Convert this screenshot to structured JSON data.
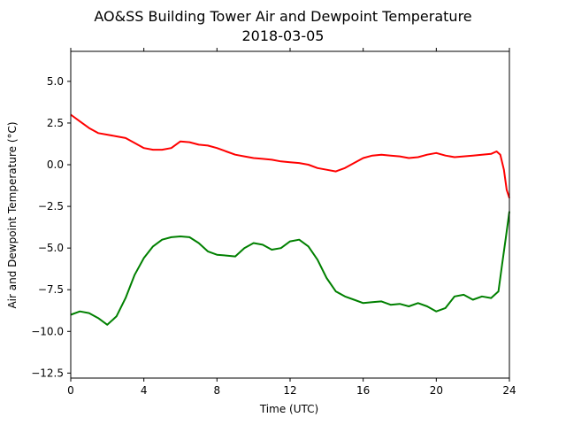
{
  "chart_data": {
    "type": "line",
    "title": "AO&SS Building Tower Air and Dewpoint Temperature",
    "subtitle": "2018-03-05",
    "xlabel": "Time (UTC)",
    "ylabel": "Air and Dewpoint Temperature (°C)",
    "xlim": [
      0,
      24
    ],
    "ylim": [
      -12.8,
      6.8
    ],
    "xticks": [
      0,
      4,
      8,
      12,
      16,
      20,
      24
    ],
    "xtick_labels": [
      "0",
      "4",
      "8",
      "12",
      "16",
      "20",
      "24"
    ],
    "yticks": [
      5.0,
      2.5,
      0.0,
      -2.5,
      -5.0,
      -7.5,
      -10.0,
      -12.5
    ],
    "ytick_labels": [
      "5.0",
      "2.5",
      "0.0",
      "−2.5",
      "−5.0",
      "−7.5",
      "−10.0",
      "−12.5"
    ],
    "grid": false,
    "series": [
      {
        "color": "#ff0000",
        "x": [
          0,
          0.5,
          1,
          1.5,
          2,
          2.5,
          3,
          3.5,
          4,
          4.5,
          5,
          5.5,
          6,
          6.5,
          7,
          7.5,
          8,
          8.5,
          9,
          9.5,
          10,
          10.5,
          11,
          11.5,
          12,
          12.5,
          13,
          13.5,
          14,
          14.5,
          15,
          15.5,
          16,
          16.5,
          17,
          17.5,
          18,
          18.5,
          19,
          19.5,
          20,
          20.5,
          21,
          21.5,
          22,
          22.5,
          23,
          23.3,
          23.5,
          23.7,
          23.85,
          24
        ],
        "y": [
          3.0,
          2.6,
          2.2,
          1.9,
          1.8,
          1.7,
          1.6,
          1.3,
          1.0,
          0.9,
          0.9,
          1.0,
          1.4,
          1.35,
          1.2,
          1.15,
          1.0,
          0.8,
          0.6,
          0.5,
          0.4,
          0.35,
          0.3,
          0.2,
          0.15,
          0.1,
          0.0,
          -0.2,
          -0.3,
          -0.4,
          -0.2,
          0.1,
          0.4,
          0.55,
          0.6,
          0.55,
          0.5,
          0.4,
          0.45,
          0.6,
          0.7,
          0.55,
          0.45,
          0.5,
          0.55,
          0.6,
          0.65,
          0.8,
          0.6,
          -0.3,
          -1.5,
          -2.0
        ]
      },
      {
        "color": "#008000",
        "x": [
          0,
          0.5,
          1,
          1.5,
          2,
          2.5,
          3,
          3.5,
          4,
          4.5,
          5,
          5.5,
          6,
          6.5,
          7,
          7.5,
          8,
          8.5,
          9,
          9.5,
          10,
          10.5,
          11,
          11.5,
          12,
          12.5,
          13,
          13.5,
          14,
          14.5,
          15,
          15.5,
          16,
          16.5,
          17,
          17.5,
          18,
          18.5,
          19,
          19.5,
          20,
          20.5,
          21,
          21.5,
          22,
          22.5,
          23,
          23.4,
          23.6,
          23.8,
          24
        ],
        "y": [
          -9.0,
          -8.8,
          -8.9,
          -9.2,
          -9.6,
          -9.1,
          -8.0,
          -6.6,
          -5.6,
          -4.9,
          -4.5,
          -4.35,
          -4.3,
          -4.35,
          -4.7,
          -5.2,
          -5.4,
          -5.45,
          -5.5,
          -5.0,
          -4.7,
          -4.8,
          -5.1,
          -5.0,
          -4.6,
          -4.5,
          -4.9,
          -5.7,
          -6.8,
          -7.6,
          -7.9,
          -8.1,
          -8.3,
          -8.25,
          -8.2,
          -8.4,
          -8.35,
          -8.5,
          -8.3,
          -8.5,
          -8.8,
          -8.6,
          -7.9,
          -7.8,
          -8.1,
          -7.9,
          -8.0,
          -7.6,
          -6.0,
          -4.4,
          -2.8
        ]
      }
    ]
  }
}
